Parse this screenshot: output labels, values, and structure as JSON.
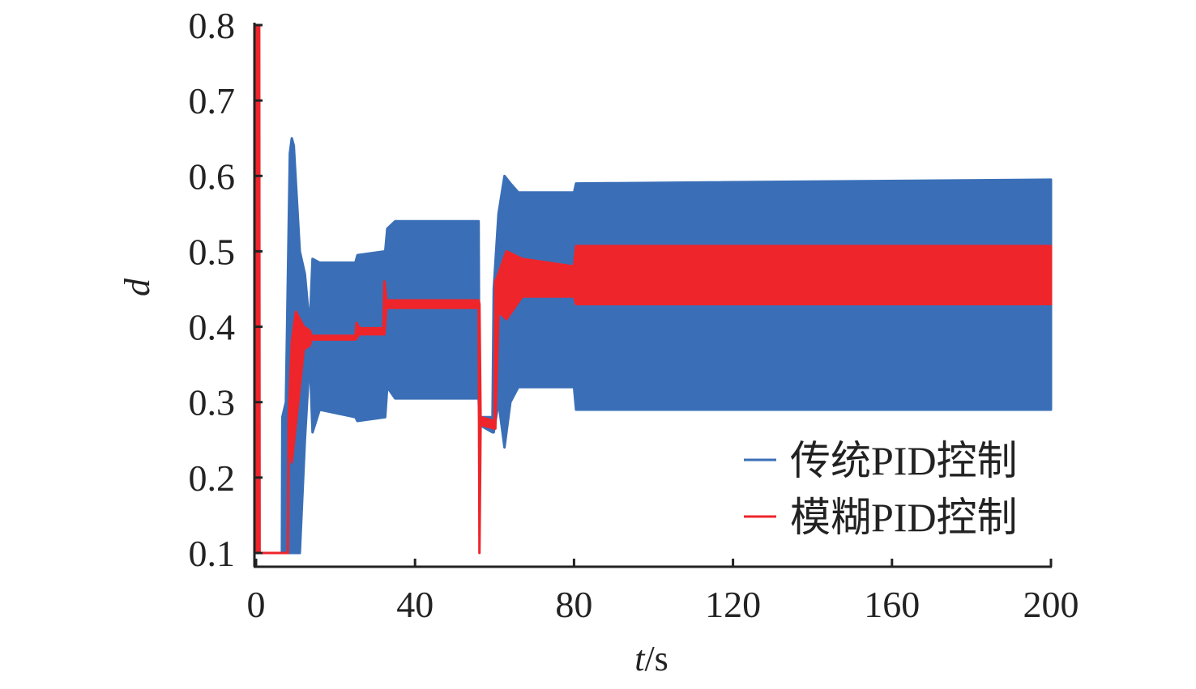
{
  "chart_data": {
    "type": "line",
    "title": "",
    "xlabel": "t/s",
    "xlabel_italic": "t",
    "xlabel_unit": "/s",
    "ylabel": "d",
    "xlim": [
      0,
      200
    ],
    "ylim": [
      0.1,
      0.8
    ],
    "xticks": [
      "0",
      "40",
      "80",
      "120",
      "160",
      "200"
    ],
    "yticks": [
      "0.1",
      "0.2",
      "0.3",
      "0.4",
      "0.5",
      "0.6",
      "0.7",
      "0.8"
    ],
    "legend_position": "bottom-right",
    "grid": false,
    "envelope_format": "[t, d_min, d_max] (oscillating signal envelope)",
    "series": [
      {
        "name": "传统PID控制",
        "color": "#3a6fb7",
        "envelope": [
          [
            0,
            0.1,
            0.1
          ],
          [
            6.5,
            0.1,
            0.1
          ],
          [
            6.6,
            0.1,
            0.28
          ],
          [
            7.5,
            0.1,
            0.3
          ],
          [
            8.5,
            0.1,
            0.63
          ],
          [
            9,
            0.1,
            0.65
          ],
          [
            9.5,
            0.1,
            0.64
          ],
          [
            11,
            0.1,
            0.5
          ],
          [
            12.3,
            0.25,
            0.47
          ],
          [
            13.5,
            0.36,
            0.4
          ],
          [
            14.2,
            0.26,
            0.49
          ],
          [
            16,
            0.29,
            0.485
          ],
          [
            25,
            0.28,
            0.485
          ],
          [
            25.5,
            0.275,
            0.495
          ],
          [
            32.5,
            0.28,
            0.5
          ],
          [
            33,
            0.32,
            0.53
          ],
          [
            35,
            0.305,
            0.54
          ],
          [
            56,
            0.305,
            0.54
          ],
          [
            56.2,
            0.27,
            0.28
          ],
          [
            59.5,
            0.26,
            0.28
          ],
          [
            59.8,
            0.26,
            0.45
          ],
          [
            61,
            0.3,
            0.55
          ],
          [
            62.5,
            0.24,
            0.6
          ],
          [
            64,
            0.3,
            0.59
          ],
          [
            66,
            0.32,
            0.578
          ],
          [
            80,
            0.32,
            0.578
          ],
          [
            80.5,
            0.29,
            0.59
          ],
          [
            200,
            0.29,
            0.595
          ]
        ]
      },
      {
        "name": "模糊PID控制",
        "color": "#ee252b",
        "envelope": [
          [
            0,
            0.1,
            0.8
          ],
          [
            0.8,
            0.1,
            0.8
          ],
          [
            0.9,
            0.1,
            0.1
          ],
          [
            8,
            0.1,
            0.1
          ],
          [
            8.2,
            0.25,
            0.28
          ],
          [
            9,
            0.22,
            0.38
          ],
          [
            10,
            0.27,
            0.42
          ],
          [
            11,
            0.32,
            0.41
          ],
          [
            12,
            0.37,
            0.4
          ],
          [
            13.5,
            0.375,
            0.395
          ],
          [
            14,
            0.383,
            0.388
          ],
          [
            25,
            0.383,
            0.388
          ],
          [
            25.3,
            0.385,
            0.405
          ],
          [
            26,
            0.39,
            0.398
          ],
          [
            32,
            0.39,
            0.398
          ],
          [
            32.3,
            0.39,
            0.46
          ],
          [
            32.8,
            0.425,
            0.435
          ],
          [
            56,
            0.425,
            0.435
          ],
          [
            56.2,
            0.1,
            0.43
          ],
          [
            56.5,
            0.27,
            0.28
          ],
          [
            60,
            0.265,
            0.275
          ],
          [
            60.2,
            0.265,
            0.46
          ],
          [
            61,
            0.42,
            0.47
          ],
          [
            63,
            0.41,
            0.5
          ],
          [
            67,
            0.44,
            0.49
          ],
          [
            80,
            0.44,
            0.48
          ],
          [
            80.5,
            0.43,
            0.507
          ],
          [
            200,
            0.43,
            0.507
          ]
        ]
      }
    ]
  }
}
